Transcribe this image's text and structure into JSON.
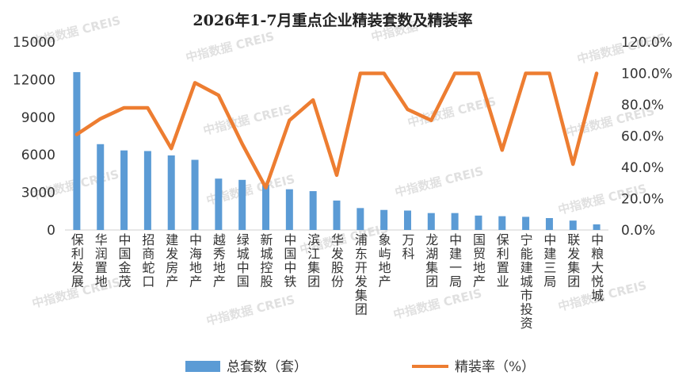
{
  "chart_data": {
    "type": "bar",
    "title": "2026年1-7月重点企业精装套数及精装率",
    "categories": [
      "保利发展",
      "华润置地",
      "中国金茂",
      "招商蛇口",
      "建发房产",
      "中海地产",
      "越秀地产",
      "绿城中国",
      "新城控股",
      "中国中铁",
      "滨江集团",
      "华发股份",
      "浦东开发集团",
      "象屿地产",
      "万科",
      "龙湖集团",
      "中建一局",
      "国贸地产",
      "保利置业",
      "宁能建城市投资",
      "中建三局",
      "联发集团",
      "中粮大悦城"
    ],
    "series": [
      {
        "name": "总套数（套）",
        "type": "bar",
        "axis": "left",
        "color": "#5b9bd5",
        "values": [
          12600,
          6850,
          6350,
          6300,
          5950,
          5600,
          4100,
          4000,
          3600,
          3250,
          3100,
          2350,
          1750,
          1600,
          1550,
          1350,
          1350,
          1150,
          1100,
          1050,
          950,
          750,
          450
        ]
      },
      {
        "name": "精装率（%）",
        "type": "line",
        "axis": "right",
        "color": "#ed7d31",
        "values": [
          61,
          71,
          78,
          78,
          52,
          94,
          86,
          55,
          27,
          70,
          83,
          35,
          100,
          100,
          77,
          70,
          100,
          100,
          51,
          100,
          100,
          42,
          100
        ]
      }
    ],
    "y_left": {
      "min": 0,
      "max": 15000,
      "ticks": [
        0,
        3000,
        6000,
        9000,
        12000,
        15000
      ],
      "tick_labels": [
        "0",
        "3000",
        "6000",
        "9000",
        "12000",
        "15000"
      ]
    },
    "y_right": {
      "min": 0,
      "max": 120,
      "ticks": [
        0,
        20,
        40,
        60,
        80,
        100,
        120
      ],
      "tick_labels": [
        "0.0%",
        "20.0%",
        "40.0%",
        "60.0%",
        "80.0%",
        "100.0%",
        "120.0%"
      ]
    },
    "grid": false,
    "legend": {
      "placement": "bottom",
      "entries": [
        "总套数（套）",
        "精装率（%）"
      ]
    },
    "watermark": "中指数据 CREIS"
  }
}
